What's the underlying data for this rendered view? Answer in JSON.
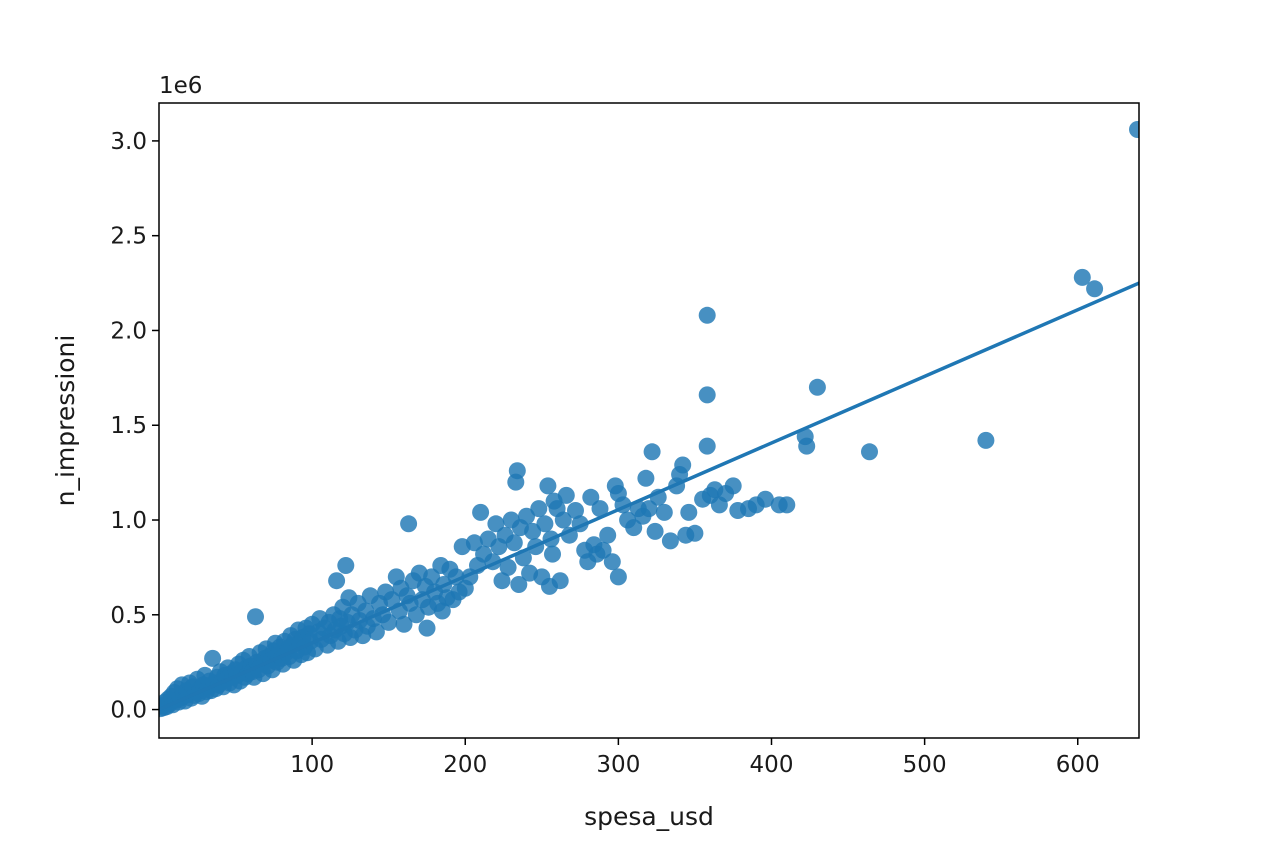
{
  "chart_data": {
    "type": "scatter",
    "xlabel": "spesa_usd",
    "ylabel": "n_impressioni",
    "y_offset_text": "1e6",
    "xlim": [
      0,
      640
    ],
    "ylim": [
      -150000,
      3200000
    ],
    "xticks": [
      100,
      200,
      300,
      400,
      500,
      600
    ],
    "xtick_labels": [
      "100",
      "200",
      "300",
      "400",
      "500",
      "600"
    ],
    "yticks": [
      0,
      500000,
      1000000,
      1500000,
      2000000,
      2500000,
      3000000
    ],
    "ytick_labels": [
      "0.0",
      "0.5",
      "1.0",
      "1.5",
      "2.0",
      "2.5",
      "3.0"
    ],
    "grid": false,
    "marker_color": "#1f77b4",
    "regression_line": {
      "x": [
        0,
        640
      ],
      "y": [
        0,
        2250000
      ]
    },
    "series": [
      {
        "points": [
          [
            1,
            5000
          ],
          [
            2,
            20000
          ],
          [
            3,
            10000
          ],
          [
            4,
            40000
          ],
          [
            5,
            15000
          ],
          [
            6,
            55000
          ],
          [
            7,
            30000
          ],
          [
            8,
            70000
          ],
          [
            9,
            25000
          ],
          [
            10,
            90000
          ],
          [
            11,
            50000
          ],
          [
            12,
            110000
          ],
          [
            13,
            40000
          ],
          [
            14,
            60000
          ],
          [
            15,
            130000
          ],
          [
            16,
            70000
          ],
          [
            17,
            45000
          ],
          [
            18,
            100000
          ],
          [
            19,
            80000
          ],
          [
            20,
            140000
          ],
          [
            21,
            60000
          ],
          [
            22,
            120000
          ],
          [
            23,
            75000
          ],
          [
            24,
            95000
          ],
          [
            25,
            160000
          ],
          [
            26,
            85000
          ],
          [
            27,
            110000
          ],
          [
            28,
            70000
          ],
          [
            29,
            130000
          ],
          [
            30,
            180000
          ],
          [
            31,
            95000
          ],
          [
            32,
            120000
          ],
          [
            33,
            150000
          ],
          [
            34,
            100000
          ],
          [
            35,
            270000
          ],
          [
            36,
            140000
          ],
          [
            37,
            110000
          ],
          [
            38,
            170000
          ],
          [
            39,
            130000
          ],
          [
            40,
            200000
          ],
          [
            41,
            150000
          ],
          [
            42,
            120000
          ],
          [
            43,
            180000
          ],
          [
            44,
            160000
          ],
          [
            45,
            220000
          ],
          [
            46,
            140000
          ],
          [
            47,
            190000
          ],
          [
            48,
            170000
          ],
          [
            49,
            130000
          ],
          [
            50,
            210000
          ],
          [
            51,
            180000
          ],
          [
            52,
            240000
          ],
          [
            53,
            150000
          ],
          [
            54,
            200000
          ],
          [
            55,
            260000
          ],
          [
            56,
            170000
          ],
          [
            57,
            220000
          ],
          [
            58,
            190000
          ],
          [
            59,
            280000
          ],
          [
            60,
            230000
          ],
          [
            61,
            200000
          ],
          [
            62,
            170000
          ],
          [
            63,
            490000
          ],
          [
            64,
            250000
          ],
          [
            65,
            210000
          ],
          [
            66,
            300000
          ],
          [
            67,
            240000
          ],
          [
            68,
            190000
          ],
          [
            69,
            270000
          ],
          [
            70,
            320000
          ],
          [
            71,
            230000
          ],
          [
            72,
            280000
          ],
          [
            73,
            260000
          ],
          [
            74,
            210000
          ],
          [
            75,
            310000
          ],
          [
            76,
            350000
          ],
          [
            77,
            250000
          ],
          [
            78,
            290000
          ],
          [
            79,
            330000
          ],
          [
            80,
            270000
          ],
          [
            81,
            240000
          ],
          [
            82,
            360000
          ],
          [
            83,
            300000
          ],
          [
            84,
            320000
          ],
          [
            85,
            280000
          ],
          [
            86,
            390000
          ],
          [
            87,
            340000
          ],
          [
            88,
            260000
          ],
          [
            89,
            370000
          ],
          [
            90,
            310000
          ],
          [
            91,
            420000
          ],
          [
            92,
            350000
          ],
          [
            93,
            290000
          ],
          [
            94,
            380000
          ],
          [
            95,
            330000
          ],
          [
            96,
            430000
          ],
          [
            97,
            300000
          ],
          [
            98,
            400000
          ],
          [
            99,
            360000
          ],
          [
            100,
            450000
          ],
          [
            102,
            320000
          ],
          [
            104,
            410000
          ],
          [
            105,
            480000
          ],
          [
            106,
            370000
          ],
          [
            108,
            430000
          ],
          [
            110,
            340000
          ],
          [
            111,
            460000
          ],
          [
            112,
            390000
          ],
          [
            114,
            500000
          ],
          [
            115,
            420000
          ],
          [
            116,
            680000
          ],
          [
            117,
            360000
          ],
          [
            118,
            480000
          ],
          [
            119,
            440000
          ],
          [
            120,
            540000
          ],
          [
            121,
            400000
          ],
          [
            122,
            760000
          ],
          [
            123,
            460000
          ],
          [
            124,
            590000
          ],
          [
            125,
            380000
          ],
          [
            126,
            500000
          ],
          [
            128,
            420000
          ],
          [
            130,
            560000
          ],
          [
            131,
            470000
          ],
          [
            133,
            390000
          ],
          [
            135,
            520000
          ],
          [
            136,
            440000
          ],
          [
            138,
            600000
          ],
          [
            140,
            480000
          ],
          [
            142,
            410000
          ],
          [
            144,
            560000
          ],
          [
            146,
            500000
          ],
          [
            148,
            620000
          ],
          [
            150,
            460000
          ],
          [
            152,
            580000
          ],
          [
            155,
            700000
          ],
          [
            157,
            520000
          ],
          [
            158,
            640000
          ],
          [
            160,
            450000
          ],
          [
            162,
            600000
          ],
          [
            163,
            980000
          ],
          [
            164,
            560000
          ],
          [
            166,
            680000
          ],
          [
            168,
            500000
          ],
          [
            170,
            720000
          ],
          [
            172,
            580000
          ],
          [
            174,
            650000
          ],
          [
            175,
            430000
          ],
          [
            176,
            540000
          ],
          [
            178,
            700000
          ],
          [
            180,
            620000
          ],
          [
            182,
            560000
          ],
          [
            184,
            760000
          ],
          [
            185,
            520000
          ],
          [
            186,
            660000
          ],
          [
            188,
            590000
          ],
          [
            190,
            740000
          ],
          [
            192,
            580000
          ],
          [
            194,
            700000
          ],
          [
            196,
            620000
          ],
          [
            198,
            860000
          ],
          [
            200,
            640000
          ],
          [
            203,
            700000
          ],
          [
            206,
            880000
          ],
          [
            208,
            760000
          ],
          [
            210,
            1040000
          ],
          [
            212,
            820000
          ],
          [
            215,
            900000
          ],
          [
            218,
            780000
          ],
          [
            220,
            980000
          ],
          [
            222,
            860000
          ],
          [
            224,
            680000
          ],
          [
            226,
            920000
          ],
          [
            228,
            750000
          ],
          [
            230,
            1000000
          ],
          [
            232,
            880000
          ],
          [
            233,
            1200000
          ],
          [
            234,
            1260000
          ],
          [
            235,
            660000
          ],
          [
            236,
            960000
          ],
          [
            238,
            800000
          ],
          [
            240,
            1020000
          ],
          [
            242,
            720000
          ],
          [
            244,
            940000
          ],
          [
            246,
            860000
          ],
          [
            248,
            1060000
          ],
          [
            250,
            700000
          ],
          [
            252,
            980000
          ],
          [
            254,
            1180000
          ],
          [
            255,
            650000
          ],
          [
            256,
            900000
          ],
          [
            257,
            820000
          ],
          [
            258,
            1100000
          ],
          [
            260,
            1060000
          ],
          [
            262,
            680000
          ],
          [
            264,
            1000000
          ],
          [
            266,
            1130000
          ],
          [
            268,
            920000
          ],
          [
            272,
            1050000
          ],
          [
            275,
            980000
          ],
          [
            278,
            840000
          ],
          [
            280,
            780000
          ],
          [
            282,
            1120000
          ],
          [
            284,
            870000
          ],
          [
            286,
            820000
          ],
          [
            288,
            1060000
          ],
          [
            290,
            840000
          ],
          [
            293,
            920000
          ],
          [
            296,
            780000
          ],
          [
            298,
            1180000
          ],
          [
            300,
            1140000
          ],
          [
            300,
            700000
          ],
          [
            303,
            1080000
          ],
          [
            306,
            1000000
          ],
          [
            310,
            960000
          ],
          [
            313,
            1060000
          ],
          [
            316,
            1020000
          ],
          [
            318,
            1220000
          ],
          [
            320,
            1060000
          ],
          [
            322,
            1360000
          ],
          [
            324,
            940000
          ],
          [
            326,
            1120000
          ],
          [
            330,
            1040000
          ],
          [
            334,
            890000
          ],
          [
            338,
            1180000
          ],
          [
            340,
            1240000
          ],
          [
            342,
            1290000
          ],
          [
            344,
            920000
          ],
          [
            346,
            1040000
          ],
          [
            350,
            930000
          ],
          [
            355,
            1110000
          ],
          [
            358,
            2080000
          ],
          [
            358,
            1660000
          ],
          [
            358,
            1390000
          ],
          [
            360,
            1130000
          ],
          [
            363,
            1160000
          ],
          [
            366,
            1080000
          ],
          [
            370,
            1140000
          ],
          [
            375,
            1180000
          ],
          [
            378,
            1050000
          ],
          [
            385,
            1060000
          ],
          [
            390,
            1080000
          ],
          [
            396,
            1110000
          ],
          [
            405,
            1080000
          ],
          [
            410,
            1080000
          ],
          [
            422,
            1440000
          ],
          [
            423,
            1390000
          ],
          [
            430,
            1700000
          ],
          [
            464,
            1360000
          ],
          [
            540,
            1420000
          ],
          [
            603,
            2280000
          ],
          [
            611,
            2220000
          ],
          [
            639,
            3060000
          ]
        ]
      }
    ]
  }
}
